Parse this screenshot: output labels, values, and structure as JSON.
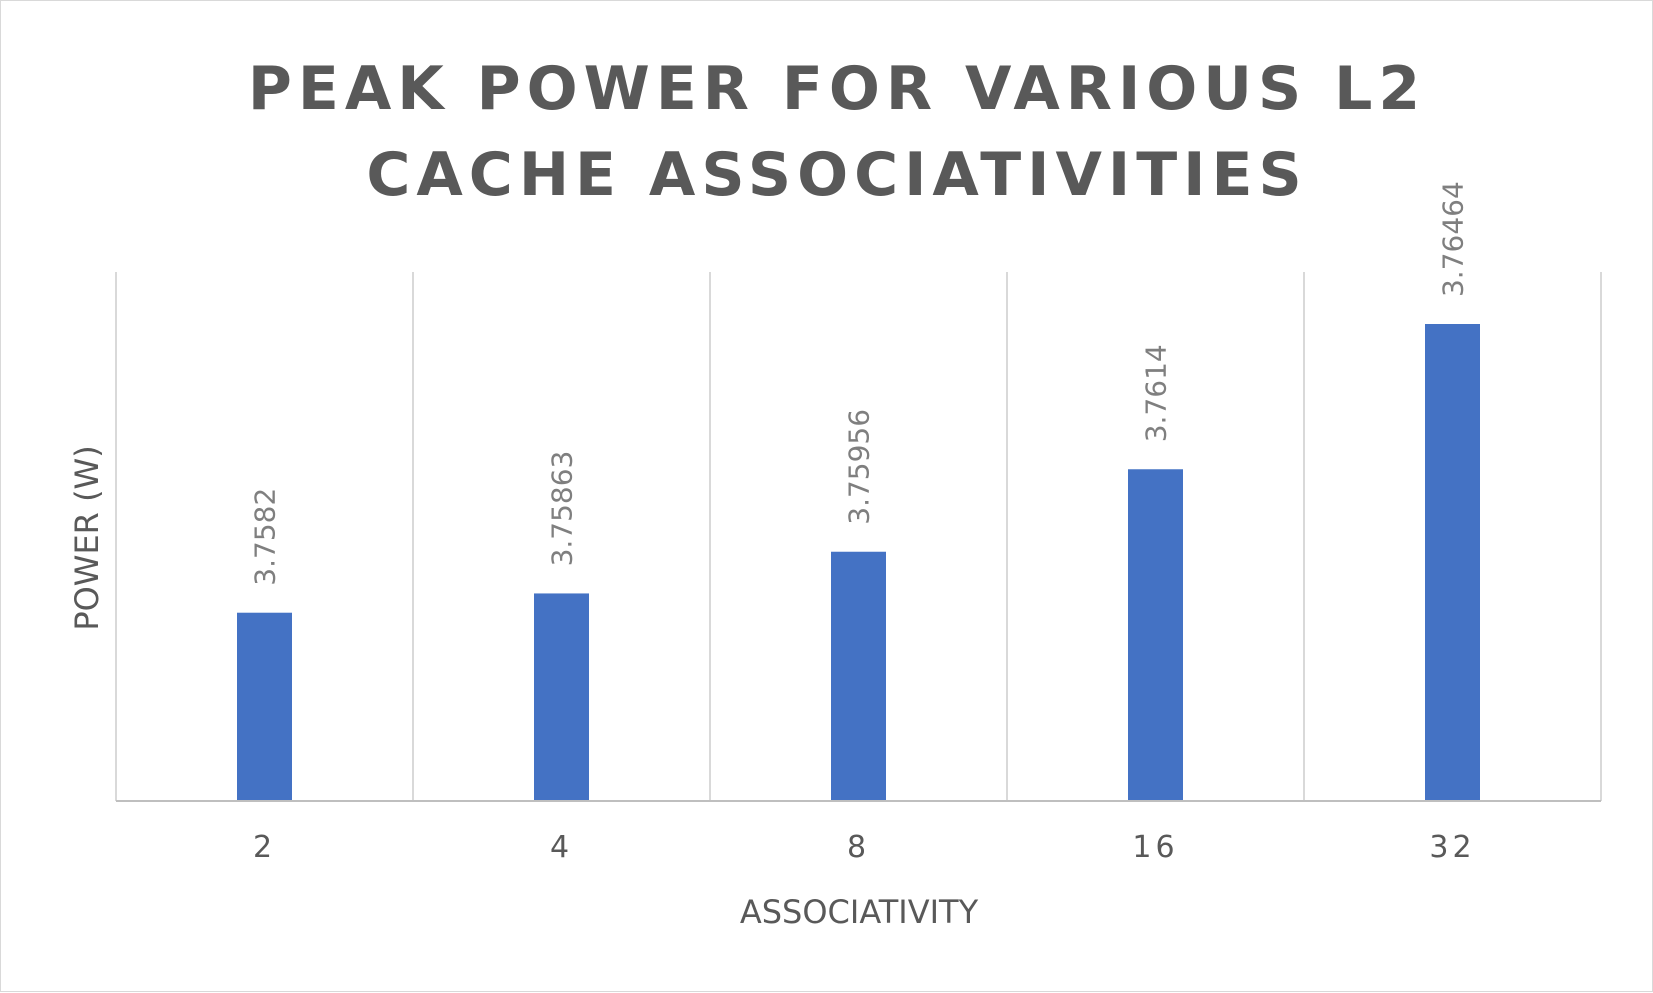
{
  "chart_data": {
    "type": "bar",
    "title_lines": [
      "PEAK POWER FOR VARIOUS L2",
      "CACHE ASSOCIATIVITIES"
    ],
    "xlabel": "ASSOCIATIVITY",
    "ylabel": "POWER (W)",
    "categories": [
      "2",
      "4",
      "8",
      "16",
      "32"
    ],
    "values": [
      3.7582,
      3.75863,
      3.75956,
      3.7614,
      3.76464
    ],
    "data_labels": [
      "3.7582",
      "3.75863",
      "3.75956",
      "3.7614",
      "3.76464"
    ],
    "ylim": [
      3.754,
      3.7658
    ],
    "grid": "vertical",
    "legend": "none",
    "bar_color": "#4472c4"
  }
}
